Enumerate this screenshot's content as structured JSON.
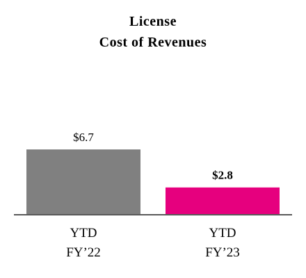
{
  "chart_data": {
    "type": "bar",
    "title_lines": [
      "License",
      "Cost of Revenues"
    ],
    "categories": [
      [
        "YTD",
        "FY’22"
      ],
      [
        "YTD",
        "FY’23"
      ]
    ],
    "values": [
      6.7,
      2.8
    ],
    "value_labels": [
      "$6.7",
      "$2.8"
    ],
    "value_label_bold": [
      false,
      true
    ],
    "colors": [
      "#808080",
      "#e6007e"
    ],
    "axis_color": "#595959",
    "ylim": [
      0,
      6.7
    ],
    "grid": false,
    "legend": "none"
  }
}
